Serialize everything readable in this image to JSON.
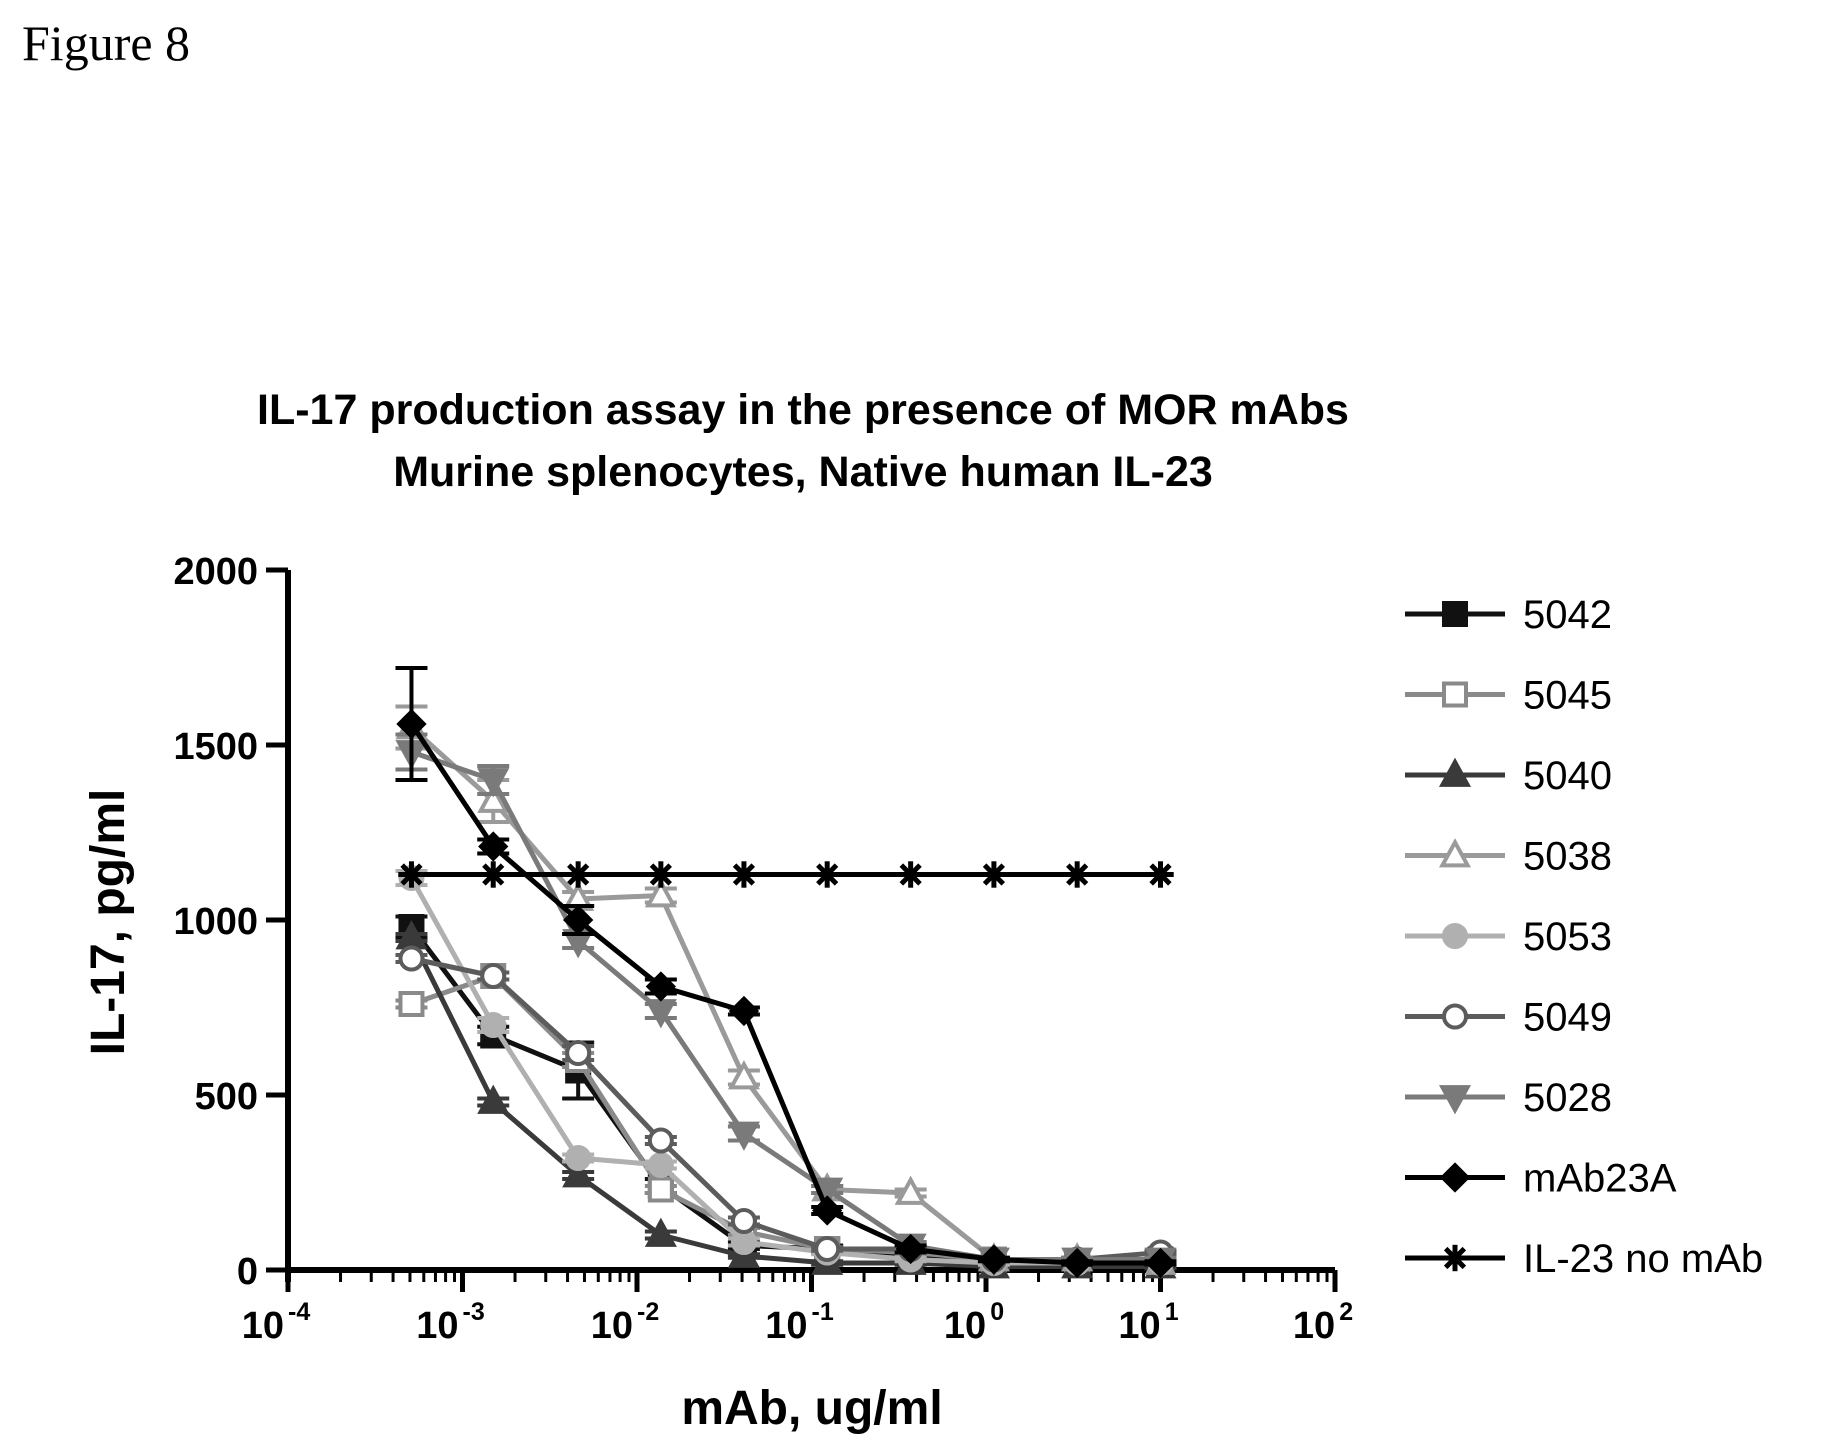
{
  "figure_label": "Figure 8",
  "chart_data": {
    "type": "line",
    "title": "IL-17 production assay in the presence of MOR mAbs",
    "subtitle": "Murine splenocytes, Native human IL-23",
    "xlabel": "mAb, ug/ml",
    "ylabel": "IL-17, pg/ml",
    "x_scale": "log",
    "xlim": [
      0.0001,
      100
    ],
    "ylim": [
      0,
      2000
    ],
    "x_tick_labels": [
      {
        "base": "10",
        "exp": "-4"
      },
      {
        "base": "10",
        "exp": "-3"
      },
      {
        "base": "10",
        "exp": "-2"
      },
      {
        "base": "10",
        "exp": "-1"
      },
      {
        "base": "10",
        "exp": "0"
      },
      {
        "base": "10",
        "exp": "1"
      },
      {
        "base": "10",
        "exp": "2"
      }
    ],
    "y_tick_labels": [
      "0",
      "500",
      "1000",
      "1500",
      "2000"
    ],
    "grid": false,
    "legend_position": "right",
    "x": [
      0.00051,
      0.0015,
      0.0046,
      0.0137,
      0.041,
      0.123,
      0.37,
      1.11,
      3.33,
      10
    ],
    "series": [
      {
        "name": "5042",
        "color": "#111111",
        "marker": "square-filled",
        "values": [
          980,
          670,
          570,
          240,
          70,
          60,
          40,
          20,
          20,
          30
        ],
        "error": [
          30,
          25,
          80,
          20,
          10,
          10,
          5,
          5,
          5,
          5
        ]
      },
      {
        "name": "5045",
        "color": "#8a8a8a",
        "marker": "square-open",
        "values": [
          760,
          840,
          600,
          230,
          110,
          60,
          50,
          30,
          20,
          20
        ],
        "error": [
          10,
          10,
          20,
          10,
          10,
          5,
          5,
          5,
          5,
          5
        ]
      },
      {
        "name": "5040",
        "color": "#3a3a3a",
        "marker": "triangle-filled",
        "values": [
          950,
          480,
          270,
          100,
          40,
          20,
          20,
          10,
          10,
          10
        ],
        "error": [
          10,
          10,
          10,
          10,
          5,
          5,
          5,
          5,
          5,
          5
        ]
      },
      {
        "name": "5038",
        "color": "#9a9a9a",
        "marker": "triangle-open",
        "values": [
          1550,
          1340,
          1060,
          1070,
          550,
          230,
          220,
          30,
          30,
          20
        ],
        "error": [
          60,
          60,
          20,
          20,
          20,
          10,
          10,
          5,
          5,
          5
        ]
      },
      {
        "name": "5053",
        "color": "#b0b0b0",
        "marker": "circle-filled",
        "values": [
          1120,
          700,
          320,
          300,
          80,
          50,
          30,
          20,
          20,
          20
        ],
        "error": [
          20,
          20,
          10,
          10,
          10,
          5,
          5,
          5,
          5,
          5
        ]
      },
      {
        "name": "5049",
        "color": "#5c5c5c",
        "marker": "circle-open",
        "values": [
          890,
          840,
          620,
          370,
          140,
          60,
          60,
          30,
          30,
          50
        ],
        "error": [
          10,
          10,
          20,
          10,
          10,
          5,
          5,
          5,
          5,
          5
        ]
      },
      {
        "name": "5028",
        "color": "#7a7a7a",
        "marker": "triangle-down-filled",
        "values": [
          1480,
          1400,
          940,
          740,
          390,
          230,
          70,
          30,
          30,
          30
        ],
        "error": [
          50,
          40,
          20,
          20,
          20,
          10,
          10,
          5,
          5,
          5
        ]
      },
      {
        "name": "mAb23A",
        "color": "#000000",
        "marker": "diamond-filled",
        "values": [
          1560,
          1210,
          1000,
          810,
          740,
          170,
          60,
          30,
          20,
          20
        ],
        "error": [
          160,
          20,
          40,
          20,
          10,
          10,
          10,
          5,
          5,
          5
        ]
      },
      {
        "name": "IL-23 no mAb",
        "color": "#000000",
        "marker": "asterisk",
        "values": [
          1130,
          1130,
          1130,
          1130,
          1130,
          1130,
          1130,
          1130,
          1130,
          1130
        ],
        "error": [
          0,
          0,
          0,
          0,
          0,
          0,
          0,
          0,
          0,
          0
        ]
      }
    ]
  }
}
